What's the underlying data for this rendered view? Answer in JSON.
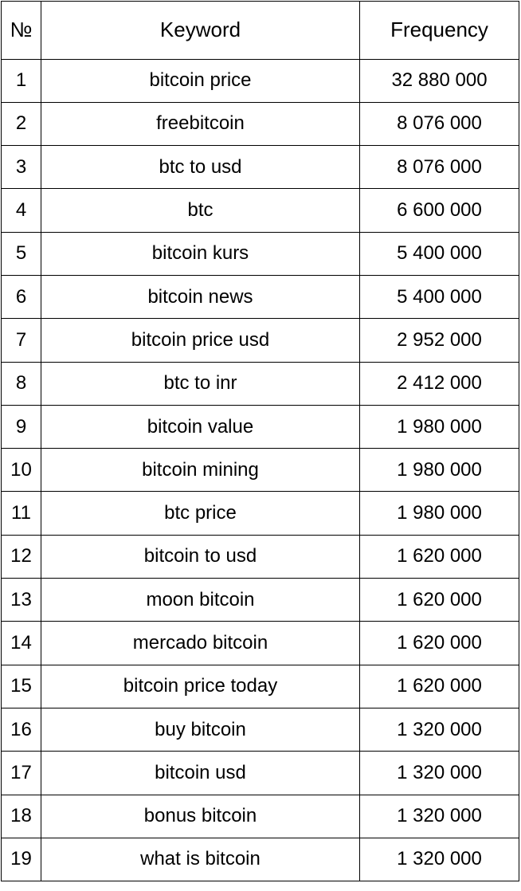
{
  "table": {
    "headers": {
      "number": "№",
      "keyword": "Keyword",
      "frequency": "Frequency"
    },
    "rows": [
      {
        "n": "1",
        "keyword": "bitcoin price",
        "frequency": "32 880 000"
      },
      {
        "n": "2",
        "keyword": "freebitcoin",
        "frequency": "8 076 000"
      },
      {
        "n": "3",
        "keyword": "btc to usd",
        "frequency": "8 076 000"
      },
      {
        "n": "4",
        "keyword": "btc",
        "frequency": "6 600 000"
      },
      {
        "n": "5",
        "keyword": "bitcoin kurs",
        "frequency": "5 400 000"
      },
      {
        "n": "6",
        "keyword": "bitcoin news",
        "frequency": "5 400 000"
      },
      {
        "n": "7",
        "keyword": "bitcoin price usd",
        "frequency": "2 952 000"
      },
      {
        "n": "8",
        "keyword": "btc to inr",
        "frequency": "2 412 000"
      },
      {
        "n": "9",
        "keyword": "bitcoin value",
        "frequency": "1 980 000"
      },
      {
        "n": "10",
        "keyword": "bitcoin mining",
        "frequency": "1 980 000"
      },
      {
        "n": "11",
        "keyword": "btc price",
        "frequency": "1 980 000"
      },
      {
        "n": "12",
        "keyword": "bitcoin to usd",
        "frequency": "1 620 000"
      },
      {
        "n": "13",
        "keyword": "moon bitcoin",
        "frequency": "1 620 000"
      },
      {
        "n": "14",
        "keyword": "mercado bitcoin",
        "frequency": "1 620 000"
      },
      {
        "n": "15",
        "keyword": "bitcoin price today",
        "frequency": "1 620 000"
      },
      {
        "n": "16",
        "keyword": "buy bitcoin",
        "frequency": "1 320 000"
      },
      {
        "n": "17",
        "keyword": "bitcoin usd",
        "frequency": "1 320 000"
      },
      {
        "n": "18",
        "keyword": "bonus bitcoin",
        "frequency": "1 320 000"
      },
      {
        "n": "19",
        "keyword": "what is bitcoin",
        "frequency": "1 320 000"
      }
    ]
  }
}
